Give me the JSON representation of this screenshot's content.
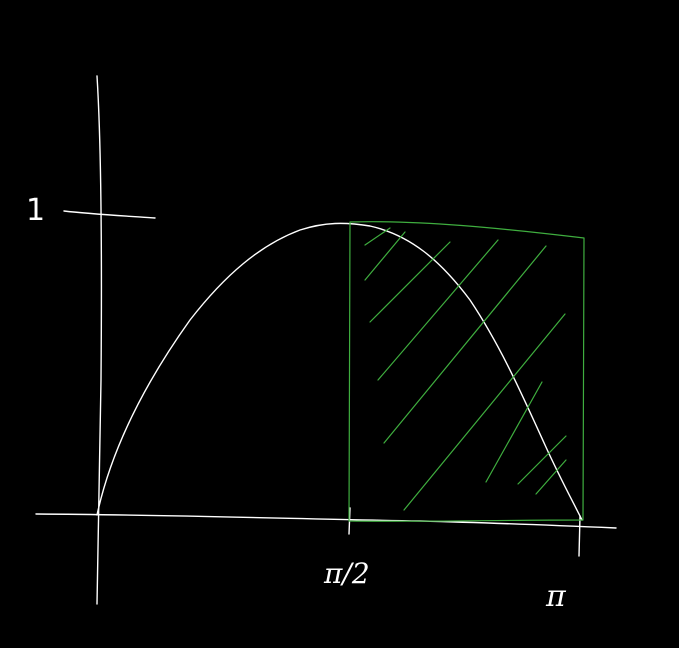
{
  "diagram": {
    "description_type": "hand-drawn sine curve with hatched rectangle",
    "labels": {
      "y_tick": "1",
      "x_tick_mid": "π/2",
      "x_tick_end": "π"
    },
    "colors": {
      "background": "#000000",
      "ink": "#ffffff",
      "highlight": "#3fae3f"
    }
  }
}
